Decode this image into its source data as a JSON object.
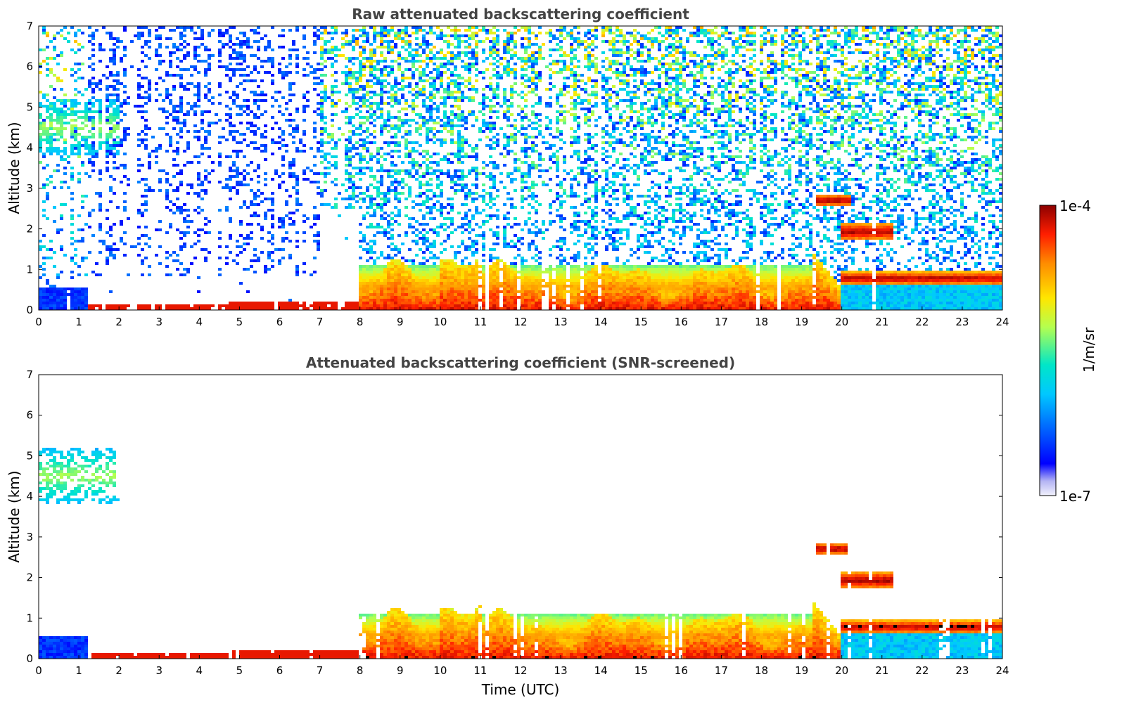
{
  "chart_data": [
    {
      "type": "heatmap",
      "title": "Raw attenuated backscattering coefficient",
      "xlabel": "",
      "ylabel": "Altitude (km)",
      "xlim": [
        0,
        24
      ],
      "ylim": [
        0,
        7
      ],
      "x_ticks": [
        "0",
        "1",
        "2",
        "3",
        "4",
        "5",
        "6",
        "7",
        "8",
        "9",
        "10",
        "11",
        "12",
        "13",
        "14",
        "15",
        "16",
        "17",
        "18",
        "19",
        "20",
        "21",
        "22",
        "23",
        "24"
      ],
      "y_ticks": [
        "0",
        "1",
        "2",
        "3",
        "4",
        "5",
        "6",
        "7"
      ],
      "screened": false,
      "features": [
        {
          "name": "surface-layer",
          "t0": 1.2,
          "t1": 8.0,
          "h0": 0.0,
          "h1": 0.15,
          "level": 0.92
        },
        {
          "name": "boundary-layer",
          "t0": 8.0,
          "t1": 19.5,
          "h0": 0.0,
          "h1": 1.1,
          "level": 0.75
        },
        {
          "name": "residual-layer",
          "t0": 20.0,
          "t1": 24.0,
          "h0": 0.6,
          "h1": 0.95,
          "level": 0.95
        },
        {
          "name": "cloud-2.7km",
          "t0": 19.4,
          "t1": 20.2,
          "h0": 2.55,
          "h1": 2.85,
          "level": 0.97
        },
        {
          "name": "cloud-1.9km",
          "t0": 20.0,
          "t1": 21.3,
          "h0": 1.7,
          "h1": 2.15,
          "level": 0.96
        },
        {
          "name": "elevated-aerosol-4.5km",
          "t0": 0.0,
          "t1": 2.0,
          "h0": 3.8,
          "h1": 5.2,
          "level": 0.55
        }
      ]
    },
    {
      "type": "heatmap",
      "title": "Attenuated backscattering coefficient (SNR-screened)",
      "xlabel": "Time (UTC)",
      "ylabel": "Altitude (km)",
      "xlim": [
        0,
        24
      ],
      "ylim": [
        0,
        7
      ],
      "x_ticks": [
        "0",
        "1",
        "2",
        "3",
        "4",
        "5",
        "6",
        "7",
        "8",
        "9",
        "10",
        "11",
        "12",
        "13",
        "14",
        "15",
        "16",
        "17",
        "18",
        "19",
        "20",
        "21",
        "22",
        "23",
        "24"
      ],
      "y_ticks": [
        "0",
        "1",
        "2",
        "3",
        "4",
        "5",
        "6",
        "7"
      ],
      "screened": true,
      "features": [
        {
          "name": "surface-layer",
          "t0": 1.2,
          "t1": 8.0,
          "h0": 0.0,
          "h1": 0.15,
          "level": 0.92
        },
        {
          "name": "boundary-layer",
          "t0": 8.0,
          "t1": 19.5,
          "h0": 0.0,
          "h1": 1.1,
          "level": 0.75
        },
        {
          "name": "residual-layer",
          "t0": 20.0,
          "t1": 24.0,
          "h0": 0.6,
          "h1": 0.95,
          "level": 0.95
        },
        {
          "name": "cloud-2.7km",
          "t0": 19.4,
          "t1": 20.2,
          "h0": 2.55,
          "h1": 2.85,
          "level": 0.97
        },
        {
          "name": "cloud-1.9km",
          "t0": 20.0,
          "t1": 21.3,
          "h0": 1.7,
          "h1": 2.15,
          "level": 0.96
        },
        {
          "name": "elevated-aerosol-4.5km",
          "t0": 0.0,
          "t1": 2.0,
          "h0": 3.8,
          "h1": 5.2,
          "level": 0.55
        }
      ]
    }
  ],
  "colorbar": {
    "label": "1/m/sr",
    "max_label": "1e-4",
    "min_label": "1e-7",
    "scale": "log",
    "range": [
      1e-07,
      0.0001
    ],
    "colormap": "jet",
    "low_colors": [
      "#f2f2fc",
      "#c8c8f5",
      "#a0a0f0"
    ]
  }
}
